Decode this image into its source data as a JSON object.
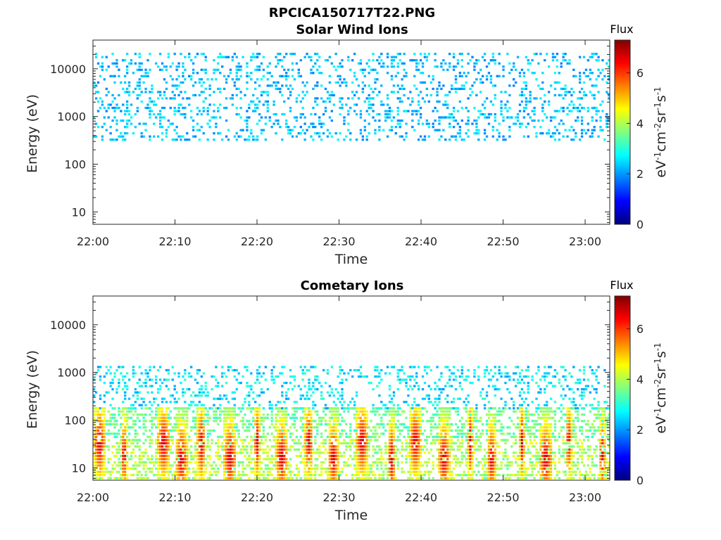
{
  "figure": {
    "title": "RPCICA150717T22.PNG"
  },
  "chart_data": [
    {
      "type": "heatmap",
      "title": "Solar Wind Ions",
      "xlabel": "Time",
      "ylabel": "Energy (eV)",
      "x_ticks": [
        "22:00",
        "22:10",
        "22:20",
        "22:30",
        "22:40",
        "22:50",
        "23:00"
      ],
      "x_range_minutes": [
        0,
        63
      ],
      "y_scale": "log",
      "y_ticks": [
        "10",
        "100",
        "1000",
        "10000"
      ],
      "y_range": [
        5.5,
        40000
      ],
      "colorbar": {
        "title": "Flux",
        "label": "eV-1cm-2sr-1s-1",
        "range": [
          0,
          7.3
        ],
        "ticks": [
          "0",
          "2",
          "4",
          "6"
        ],
        "colormap": "jet"
      },
      "populations": [
        {
          "energy_min": 300,
          "energy_max": 22000,
          "flux_min": 1.8,
          "flux_max": 2.8,
          "density": 0.22
        }
      ]
    },
    {
      "type": "heatmap",
      "title": "Cometary Ions",
      "xlabel": "Time",
      "ylabel": "Energy (eV)",
      "x_ticks": [
        "22:00",
        "22:10",
        "22:20",
        "22:30",
        "22:40",
        "22:50",
        "23:00"
      ],
      "x_range_minutes": [
        0,
        63
      ],
      "y_scale": "log",
      "y_ticks": [
        "10",
        "100",
        "1000",
        "10000"
      ],
      "y_range": [
        5.5,
        40000
      ],
      "colorbar": {
        "title": "Flux",
        "label": "eV-1cm-2sr-1s-1",
        "range": [
          0,
          7.3
        ],
        "ticks": [
          "0",
          "2",
          "4",
          "6"
        ],
        "colormap": "jet"
      },
      "populations": [
        {
          "energy_min": 150,
          "energy_max": 1300,
          "flux_min": 2.0,
          "flux_max": 3.2,
          "density": 0.25
        },
        {
          "energy_min": 40,
          "energy_max": 200,
          "flux_min": 3.0,
          "flux_max": 4.0,
          "density": 0.4
        },
        {
          "energy_min": 5.5,
          "energy_max": 40,
          "flux_min": 3.4,
          "flux_max": 4.6,
          "density": 0.45
        }
      ],
      "bursts_minutes": [
        0.8,
        3.8,
        8.6,
        10.8,
        13.2,
        16.7,
        20.0,
        23.0,
        26.3,
        29.3,
        32.8,
        36.4,
        39.3,
        42.8,
        46.0,
        48.6,
        52.3,
        55.2,
        58.0,
        62.1
      ],
      "burst_peak_flux": 7.0
    }
  ]
}
